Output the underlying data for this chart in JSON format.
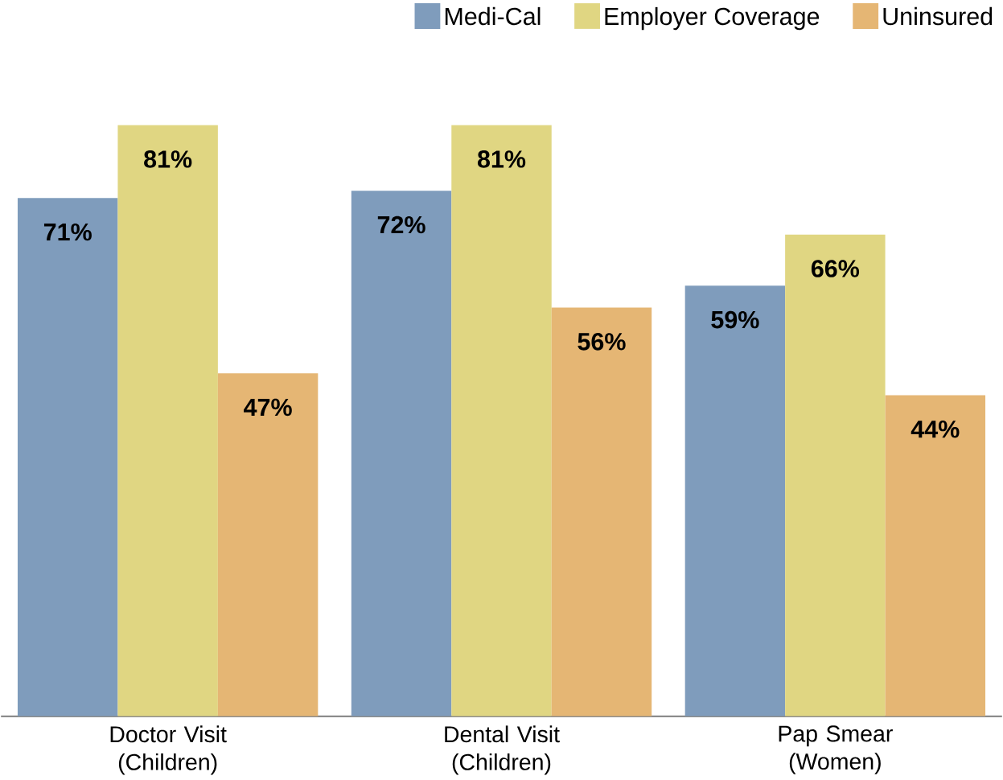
{
  "chart_data": {
    "type": "bar",
    "categories": [
      "Doctor Visit (Children)",
      "Dental Visit (Children)",
      "Pap Smear (Women)"
    ],
    "series": [
      {
        "name": "Medi-Cal",
        "color": "#7f9cbc",
        "values": [
          71,
          72,
          59
        ],
        "value_labels": [
          "71%",
          "72%",
          "59%"
        ]
      },
      {
        "name": "Employer Coverage",
        "color": "#e0d682",
        "values": [
          81,
          81,
          66
        ],
        "value_labels": [
          "81%",
          "81%",
          "66%"
        ]
      },
      {
        "name": "Uninsured",
        "color": "#e5b674",
        "values": [
          47,
          56,
          44
        ],
        "value_labels": [
          "47%",
          "56%",
          "44%"
        ]
      }
    ],
    "tick_labels": "x",
    "legend": "top right",
    "grid": false
  }
}
